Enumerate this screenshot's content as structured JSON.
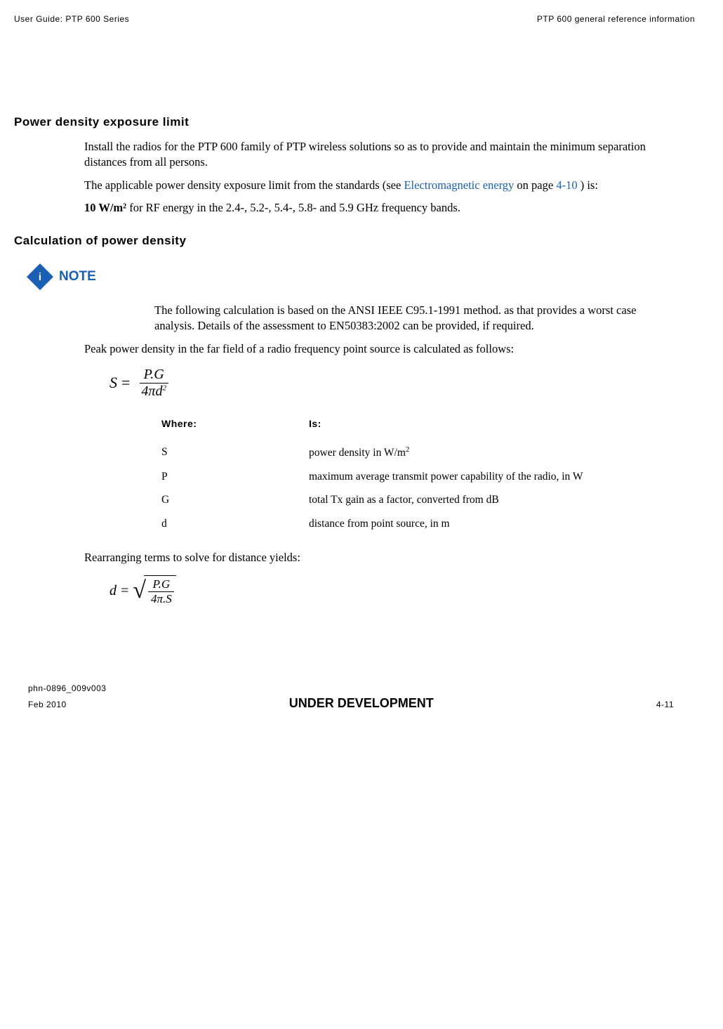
{
  "header": {
    "left": "User Guide: PTP 600 Series",
    "right": "PTP 600 general reference information"
  },
  "section1": {
    "title": "Power density exposure limit",
    "p1_a": "Install the radios for the PTP 600 family of PTP wireless solutions so as to provide and maintain the minimum separation distances from all persons.",
    "p2_a": "The applicable power density exposure limit from the standards (see ",
    "p2_link": "Electromagnetic energy",
    "p2_b": " on page ",
    "p2_pageref": "4-10",
    "p2_c": " ) is:",
    "p3_bold": "10 W/m²",
    "p3_rest": " for RF energy in the 2.4-, 5.2-, 5.4-, 5.8- and 5.9 GHz frequency bands."
  },
  "section2": {
    "title": "Calculation of power density",
    "note_label": "NOTE",
    "note_body": "The following calculation is based on the ANSI IEEE C95.1-1991 method. as that provides a worst case analysis.  Details of the assessment to EN50383:2002 can be provided, if required.",
    "p1": "Peak power density in the far field of a radio frequency point source is calculated as follows:",
    "formula1": {
      "left": "S",
      "eq": "=",
      "num": "P.G",
      "den_a": "4πd",
      "den_exp": "2"
    },
    "table": {
      "h1": "Where:",
      "h2": "Is:",
      "rows": [
        {
          "sym": "S",
          "desc_a": "power density in W/m",
          "desc_sup": "2"
        },
        {
          "sym": "P",
          "desc_a": "maximum average transmit power capability of the radio, in W"
        },
        {
          "sym": "G",
          "desc_a": "total Tx gain as a factor, converted from dB"
        },
        {
          "sym": "d",
          "desc_a": "distance from point source, in m"
        }
      ]
    },
    "p2": "Rearranging terms to solve for distance yields:",
    "formula2": {
      "left": "d",
      "eq": "=",
      "num": "P.G",
      "den": "4π.S"
    }
  },
  "footer": {
    "doc": "phn-0896_009v003",
    "date": "Feb 2010",
    "center": "UNDER DEVELOPMENT",
    "page": "4-11"
  }
}
